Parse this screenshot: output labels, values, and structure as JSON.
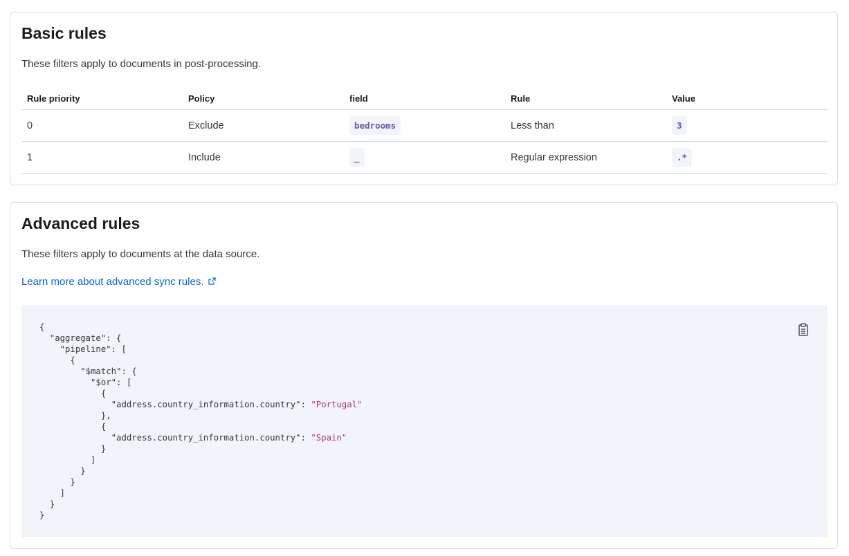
{
  "basic": {
    "title": "Basic rules",
    "description": "These filters apply to documents in post-processing.",
    "columns": [
      "Rule priority",
      "Policy",
      "field",
      "Rule",
      "Value"
    ],
    "rows": [
      {
        "priority": "0",
        "policy": "Exclude",
        "field": "bedrooms",
        "rule": "Less than",
        "value": "3"
      },
      {
        "priority": "1",
        "policy": "Include",
        "field": "_",
        "rule": "Regular expression",
        "value": ".*"
      }
    ]
  },
  "advanced": {
    "title": "Advanced rules",
    "description": "These filters apply to documents at the data source.",
    "link_label": "Learn more about advanced sync rules.",
    "link_icon": "external-link-icon",
    "copy_icon": "clipboard-icon",
    "code_lines": [
      {
        "text": "{"
      },
      {
        "text": "  \"aggregate\": {"
      },
      {
        "text": "    \"pipeline\": ["
      },
      {
        "text": "      {"
      },
      {
        "text": "        \"$match\": {"
      },
      {
        "text": "          \"$or\": ["
      },
      {
        "text": "            {"
      },
      {
        "text": "              \"address.country_information.country\": ",
        "str": "\"Portugal\""
      },
      {
        "text": "            },"
      },
      {
        "text": "            {"
      },
      {
        "text": "              \"address.country_information.country\": ",
        "str": "\"Spain\""
      },
      {
        "text": "            }"
      },
      {
        "text": "          ]"
      },
      {
        "text": "        }"
      },
      {
        "text": "      }"
      },
      {
        "text": "    ]"
      },
      {
        "text": "  }"
      },
      {
        "text": "}"
      }
    ]
  }
}
